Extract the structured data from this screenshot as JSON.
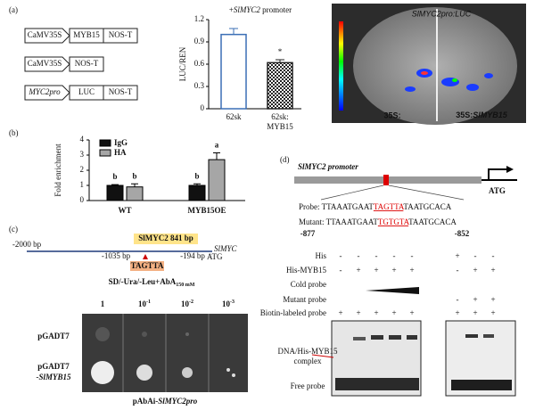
{
  "panel_a": {
    "label": "(a)",
    "constructs": [
      [
        "CaMV35S",
        "MYB15",
        "NOS-T"
      ],
      [
        "CaMV35S",
        "NOS-T"
      ],
      [
        "MYC2pro",
        "LUC",
        "NOS-T"
      ]
    ],
    "chart": {
      "title": [
        "+",
        "SlMYC2",
        " promoter"
      ],
      "y_label": "LUC/REN",
      "categories": [
        [
          "62sk"
        ],
        [
          "62sk:",
          "MYB15"
        ]
      ],
      "values": [
        1.0,
        0.62
      ],
      "errors": [
        0.08,
        0.04
      ],
      "annotation": "*",
      "ylim": [
        0,
        1.2
      ],
      "yticks": [
        0,
        0.3,
        0.6,
        0.9,
        1.2
      ]
    },
    "image": {
      "title": "SlMYC2pro:LUC",
      "left": "35S:",
      "right": [
        "35S:",
        "SlMYB15"
      ]
    }
  },
  "panel_b": {
    "label": "(b)",
    "y_label": "Fold enrichment",
    "categories": [
      "WT",
      "MYB15OE"
    ],
    "series": [
      {
        "name": "IgG",
        "color": "#111111",
        "values": [
          1.0,
          1.0
        ],
        "errors": [
          0.05,
          0.1
        ],
        "letters": [
          "b",
          "b"
        ]
      },
      {
        "name": "HA",
        "color": "#a6a6a6",
        "values": [
          0.9,
          2.7
        ],
        "errors": [
          0.2,
          0.45
        ],
        "letters": [
          "b",
          "a"
        ]
      }
    ],
    "ylim": [
      0,
      4
    ],
    "yticks": [
      0,
      1,
      2,
      3,
      4
    ]
  },
  "panel_c": {
    "label": "(c)",
    "map": {
      "start": "-2000 bp",
      "site": "-1035 bp",
      "end": "-194 bp",
      "atg": "ATG",
      "gene": "SlMYC",
      "fragment": "SlMYC2 841 bp",
      "motif": "TAGTTA"
    },
    "medium": [
      "SD/-Ura/-Leu+AbA",
      "150 mM"
    ],
    "dilutions": [
      [
        "1"
      ],
      [
        "10",
        "-1"
      ],
      [
        "10",
        "-2"
      ],
      [
        "10",
        "-3"
      ]
    ],
    "rows": [
      [
        "pGADT7"
      ],
      [
        "pGADT7",
        "-SlMYB15"
      ]
    ],
    "bait": [
      "pAbAi-",
      "SlMYC2pro"
    ]
  },
  "panel_d": {
    "label": "(d)",
    "promoter": "SlMYC2 promoter",
    "atg": "ATG",
    "probe": [
      "Probe: TTAAATGAAT",
      "TAGTTA",
      "TAATGCACA"
    ],
    "mutant": [
      "Mutant: TTAAATGAAT",
      "TGTGTA",
      "TAATGCACA"
    ],
    "pos_start": "-877",
    "pos_end": "-852",
    "rows": [
      {
        "label": "His",
        "left": [
          "-",
          "-",
          "-",
          "-",
          "-"
        ],
        "right": [
          "+",
          "-",
          "-"
        ]
      },
      {
        "label": "His-MYB15",
        "left": [
          "-",
          "+",
          "+",
          "+",
          "+"
        ],
        "right": [
          "-",
          "+",
          "+"
        ]
      },
      {
        "label": "Cold probe",
        "left": [],
        "right": []
      },
      {
        "label": "Mutant probe",
        "left": [],
        "right": [
          "-",
          "+",
          "+"
        ]
      },
      {
        "label": "Biotin-labeled probe",
        "left": [
          "+",
          "+",
          "+",
          "+",
          "+"
        ],
        "right": [
          "+",
          "+",
          "+"
        ]
      }
    ],
    "complex": [
      "DNA/His-MYB15",
      "complex"
    ],
    "free": "Free probe"
  }
}
